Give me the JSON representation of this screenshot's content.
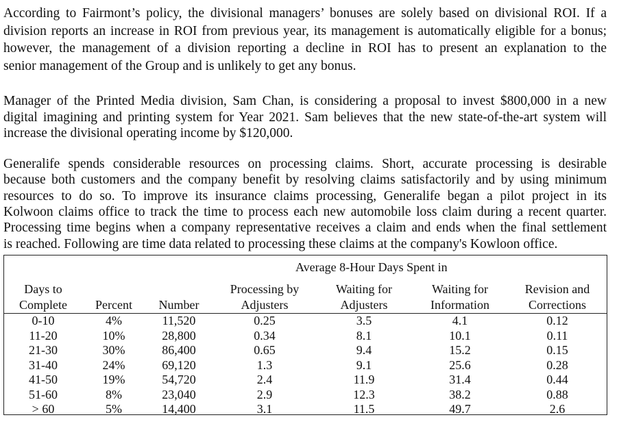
{
  "paragraphs": [
    {
      "lines": [
        "According to Fairmont’s policy, the divisional managers’ bonuses are solely based on divisional ROI.  If a",
        "division reports an increase in ROI from previous year, its management is automatically eligible for a bonus;",
        "however, the management of a division reporting a decline in ROI has to present an explanation to the",
        "senior management of the Group and is unlikely to get any bonus."
      ]
    },
    {
      "lines": [
        "Manager of the Printed Media division, Sam Chan, is considering a proposal to invest $800,000 in a new",
        "digital imagining and printing system for Year 2021.  Sam believes that the new state-of-the-art system will",
        "increase the divisional operating income by $120,000."
      ]
    },
    {
      "lines": [
        "Generalife spends considerable resources on processing claims. Short, accurate processing is desirable",
        "because both customers and the company benefit by resolving claims satisfactorily and by using minimum",
        "resources to do so. To improve its insurance claims processing, Generalife began a pilot project in its",
        "Kolwoon claims office to track the time to process each new automobile loss claim during a recent quarter.",
        "Processing time begins when a company representative receives a claim and ends when the final settlement",
        "is reached. Following are time data related to processing these claims at the company's Kowloon office."
      ]
    }
  ],
  "table": {
    "group_header": "Average 8-Hour Days Spent in",
    "columns": [
      [
        "Days to",
        "Complete"
      ],
      [
        "Percent"
      ],
      [
        "Number"
      ],
      [
        "Processing by",
        "Adjusters"
      ],
      [
        "Waiting for",
        "Adjusters"
      ],
      [
        "Waiting for",
        "Information"
      ],
      [
        "Revision and",
        "Corrections"
      ]
    ],
    "rows": [
      [
        "0-10",
        "4%",
        "11,520",
        "0.25",
        "3.5",
        "4.1",
        "0.12"
      ],
      [
        "11-20",
        "10%",
        "28,800",
        "0.34",
        "8.1",
        "10.1",
        "0.11"
      ],
      [
        "21-30",
        "30%",
        "86,400",
        "0.65",
        "9.4",
        "15.2",
        "0.15"
      ],
      [
        "31-40",
        "24%",
        "69,120",
        "1.3",
        "9.1",
        "25.6",
        "0.28"
      ],
      [
        "41-50",
        "19%",
        "54,720",
        "2.4",
        "11.9",
        "31.4",
        "0.44"
      ],
      [
        "51-60",
        "8%",
        "23,040",
        "2.9",
        "12.3",
        "38.2",
        "0.88"
      ],
      [
        "> 60",
        "5%",
        "14,400",
        "3.1",
        "11.5",
        "49.7",
        "2.6"
      ]
    ]
  }
}
